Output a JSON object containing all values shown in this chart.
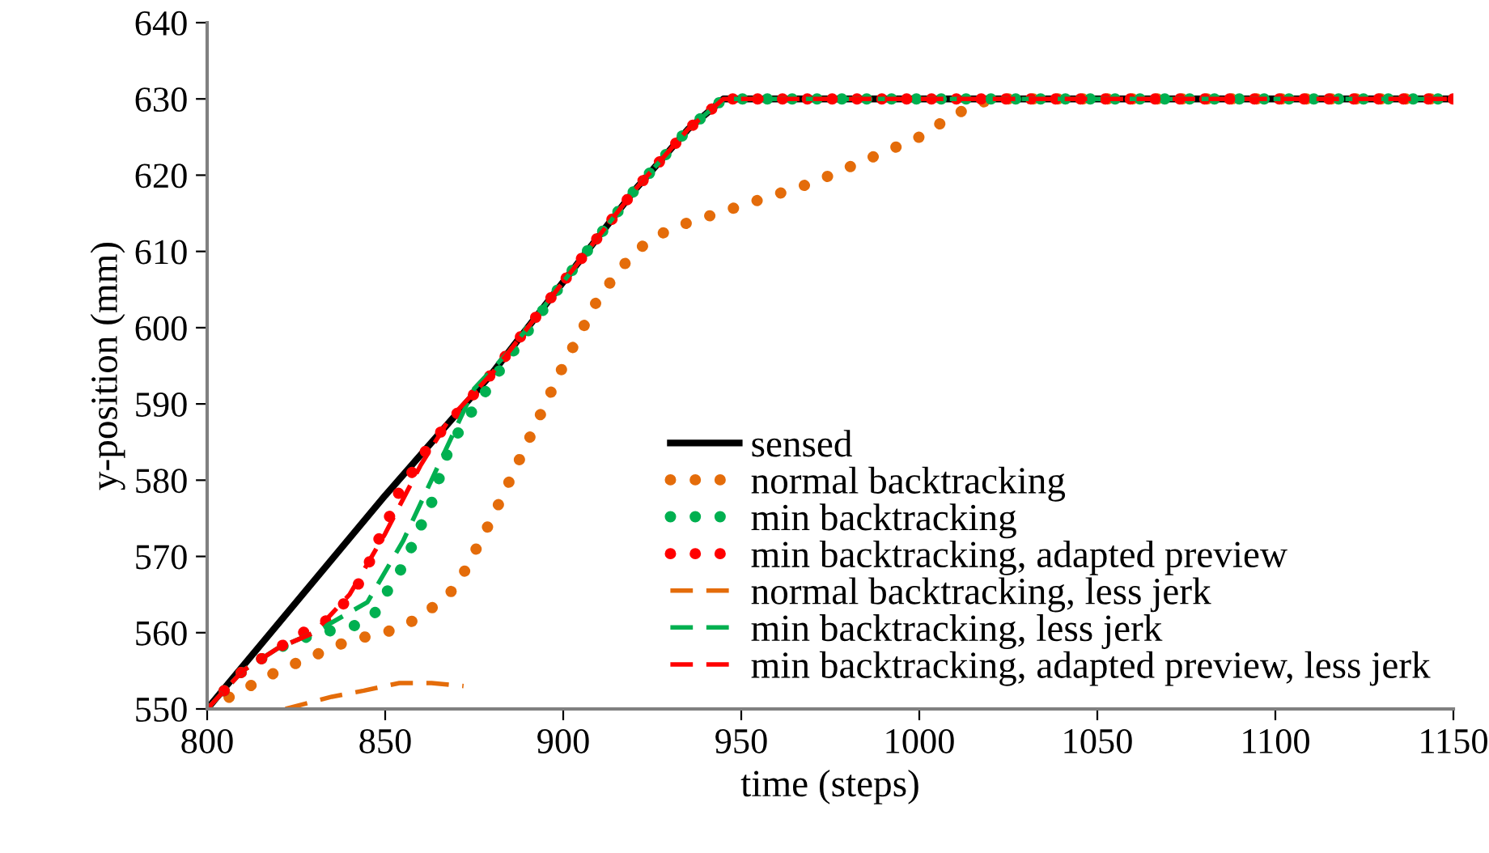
{
  "chart_data": {
    "type": "line",
    "xlabel": "time (steps)",
    "ylabel": "y-position (mm)",
    "xlim": [
      800,
      1150
    ],
    "ylim": [
      550,
      640
    ],
    "xticks": [
      800,
      850,
      900,
      950,
      1000,
      1050,
      1100,
      1150
    ],
    "yticks": [
      550,
      560,
      570,
      580,
      590,
      600,
      610,
      620,
      630,
      640
    ],
    "grid": false,
    "legend": "bottom right",
    "series": [
      {
        "name": "sensed",
        "color": "#000000",
        "line_style": "solid",
        "x": [
          800,
          850,
          880,
          900,
          920,
          935,
          945,
          1150
        ],
        "values": [
          550,
          578,
          594,
          606,
          618,
          626,
          630,
          630
        ]
      },
      {
        "name": "normal backtracking",
        "color": "#e46c0a",
        "line_style": "dotted",
        "x": [
          800,
          820,
          840,
          850,
          860,
          870,
          880,
          890,
          900,
          910,
          920,
          930,
          950,
          970,
          990,
          1000,
          1010,
          1020,
          1150
        ],
        "values": [
          550,
          555,
          559,
          560,
          562,
          566,
          575,
          585,
          595,
          604,
          610,
          613,
          616,
          619,
          623,
          625,
          628,
          630,
          630
        ]
      },
      {
        "name": "min backtracking",
        "color": "#00b050",
        "line_style": "dotted",
        "x": [
          800,
          810,
          820,
          830,
          836,
          842,
          847,
          850,
          856,
          858,
          863,
          867,
          872,
          876,
          880,
          900,
          920,
          935,
          945,
          1150
        ],
        "values": [
          550,
          555,
          558,
          559.8,
          560.4,
          561,
          562.5,
          565,
          569.5,
          572,
          577,
          583,
          587.6,
          590,
          593,
          606,
          618,
          626,
          630,
          630
        ]
      },
      {
        "name": "min backtracking, adapted preview",
        "color": "#ff0000",
        "line_style": "dotted",
        "x": [
          800,
          810,
          820,
          829,
          834,
          838,
          842,
          844.5,
          847,
          849.5,
          852,
          854,
          857.5,
          860,
          865,
          880,
          900,
          920,
          935,
          945,
          1150
        ],
        "values": [
          550,
          555,
          558,
          560.6,
          561.7,
          563.6,
          566,
          568,
          571,
          573.6,
          576,
          578.6,
          581,
          583,
          586,
          594,
          606,
          618,
          626,
          630,
          630
        ]
      },
      {
        "name": "normal backtracking, less jerk",
        "color": "#e46c0a",
        "line_style": "dashed",
        "x": [
          822,
          835,
          844,
          854,
          863,
          872
        ],
        "values": [
          550,
          551.6,
          552.4,
          553.4,
          553.4,
          553
        ]
      },
      {
        "name": "min backtracking, less jerk",
        "color": "#00b050",
        "line_style": "dashed",
        "x": [
          800,
          810,
          820,
          830,
          845,
          855,
          865,
          875,
          885,
          900,
          920,
          935,
          945,
          1150
        ],
        "values": [
          550,
          555,
          558,
          560,
          564,
          572,
          582,
          592,
          597,
          606,
          618,
          626,
          630,
          630
        ]
      },
      {
        "name": "min backtracking, adapted preview, less jerk",
        "color": "#ff0000",
        "line_style": "dashed",
        "x": [
          800,
          810,
          820,
          830,
          840,
          850,
          860,
          868,
          880,
          900,
          920,
          935,
          945,
          1150
        ],
        "values": [
          550,
          555,
          558,
          560,
          565,
          573,
          582,
          588,
          594,
          606,
          618,
          626,
          630,
          630
        ]
      }
    ]
  }
}
